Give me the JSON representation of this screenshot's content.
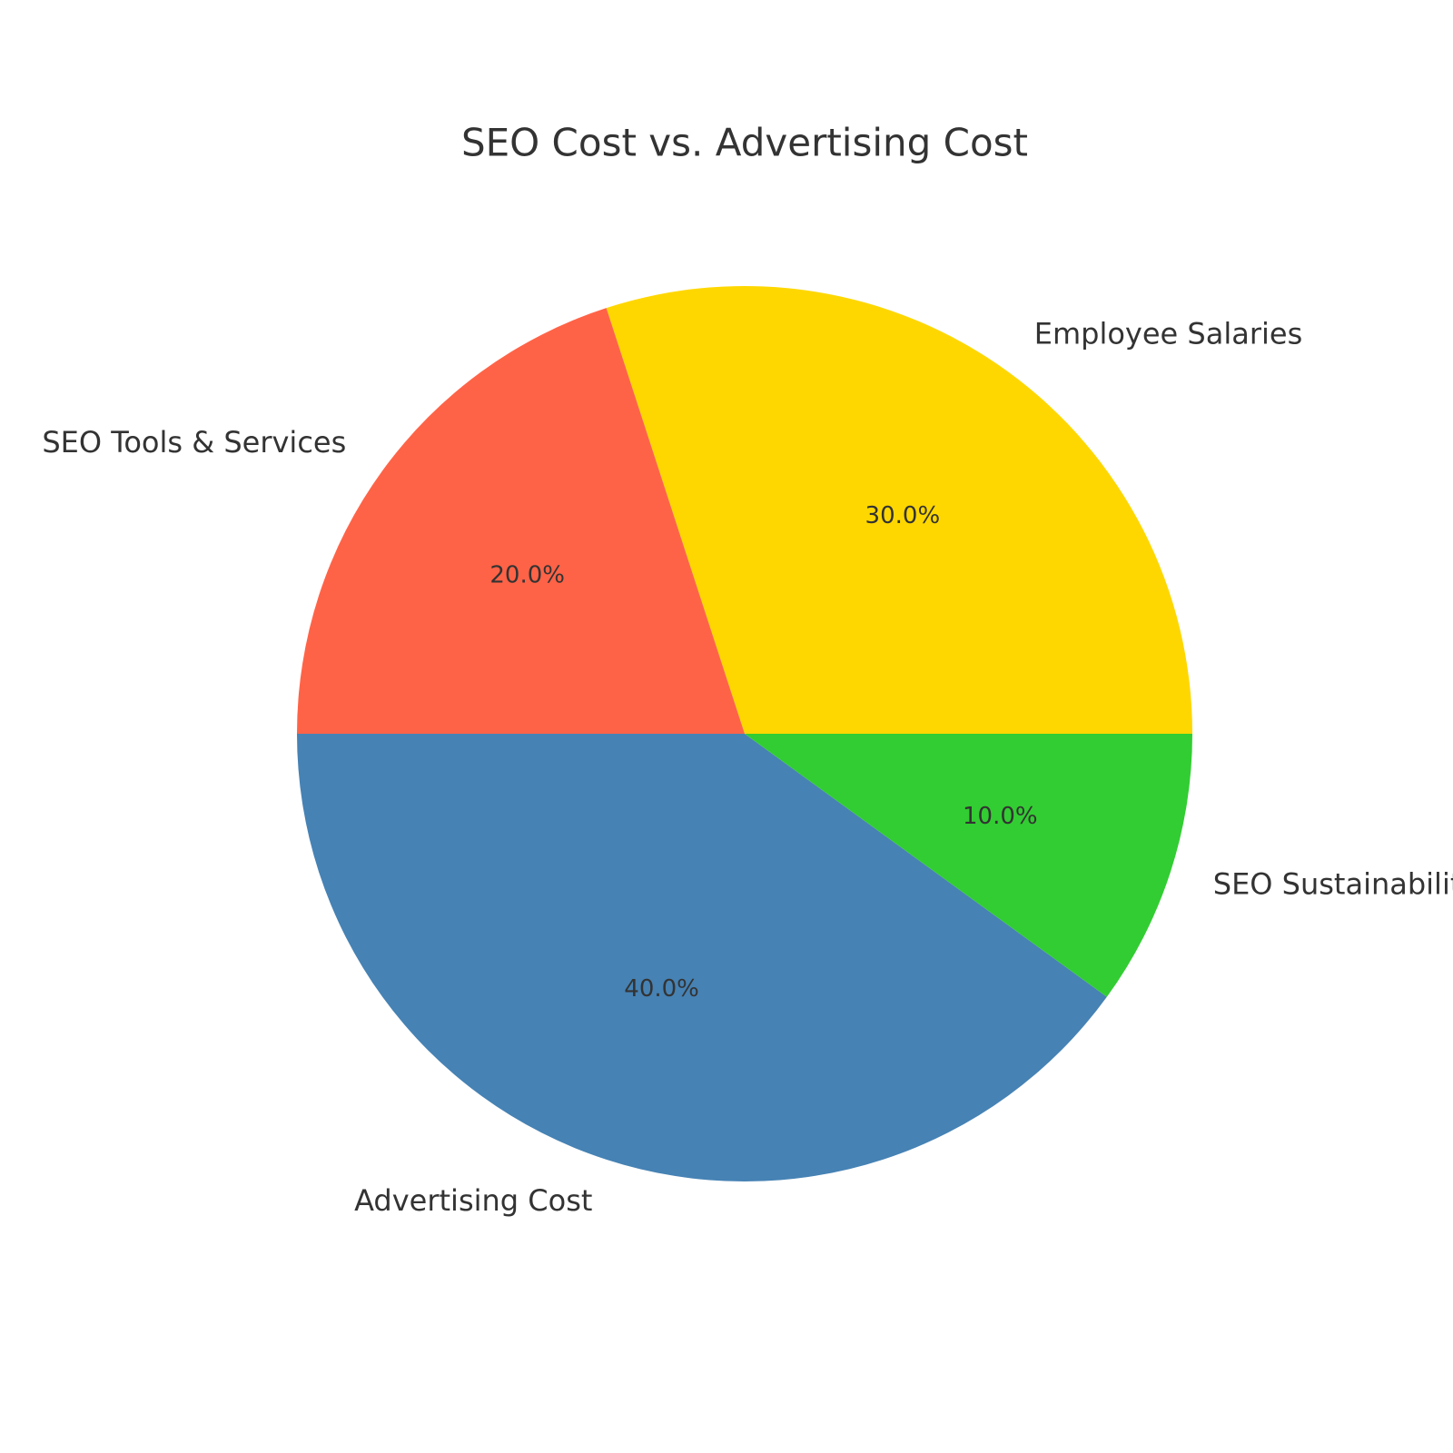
{
  "chart_data": {
    "type": "pie",
    "title": "SEO Cost vs. Advertising Cost",
    "start_angle_deg": 0,
    "direction": "counterclockwise",
    "slices": [
      {
        "label": "Employee Salaries",
        "value": 30.0,
        "pct_label": "30.0%",
        "color": "#FFD700"
      },
      {
        "label": "SEO Tools & Services",
        "value": 20.0,
        "pct_label": "20.0%",
        "color": "#FF6347"
      },
      {
        "label": "Advertising Cost",
        "value": 40.0,
        "pct_label": "40.0%",
        "color": "#4682B4"
      },
      {
        "label": "SEO Sustainability",
        "value": 10.0,
        "pct_label": "10.0%",
        "color": "#32CD32"
      }
    ]
  }
}
